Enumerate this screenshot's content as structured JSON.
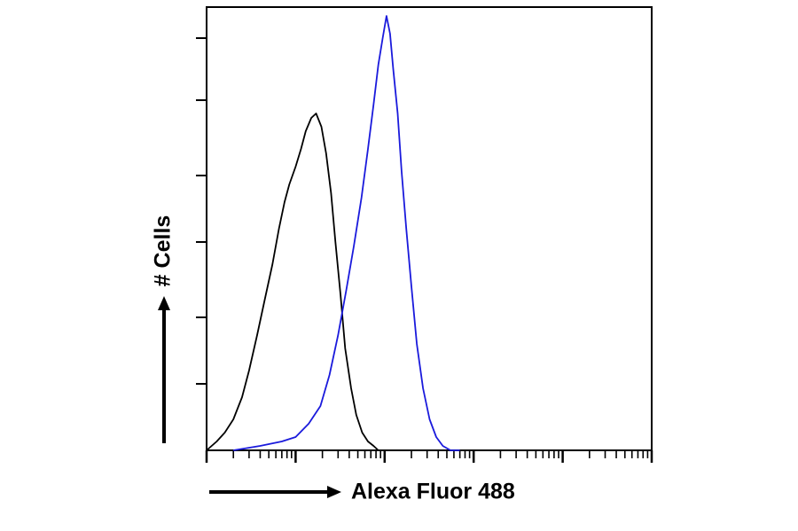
{
  "chart_data": {
    "type": "line",
    "title": "",
    "xlabel": "Alexa Fluor 488",
    "ylabel": "# Cells",
    "x_scale": "log",
    "xlim": [
      1,
      100000
    ],
    "ylim": [
      0,
      100
    ],
    "grid": false,
    "legend": "none",
    "series": [
      {
        "color": "#000000",
        "x": [
          1.0,
          1.3,
          1.6,
          2.0,
          2.5,
          3.0,
          3.7,
          4.5,
          5.5,
          6.5,
          7.5,
          8.5,
          10,
          11.5,
          13,
          15,
          17,
          19.5,
          22,
          25,
          28,
          32,
          36,
          42,
          48,
          56,
          65,
          75,
          85,
          100
        ],
        "values": [
          0,
          2,
          4,
          7,
          12,
          18,
          26,
          34,
          42,
          50,
          56,
          60,
          64,
          68,
          72,
          75,
          76,
          73,
          67,
          58,
          47,
          35,
          23,
          14,
          8,
          4,
          2,
          1,
          0,
          0
        ]
      },
      {
        "color": "#1a1adc",
        "x": [
          2,
          4,
          7,
          10,
          14,
          19,
          24,
          30,
          37,
          45,
          55,
          65,
          75,
          85,
          95,
          105,
          115,
          125,
          140,
          155,
          175,
          200,
          230,
          270,
          320,
          380,
          450,
          550,
          700
        ],
        "values": [
          0,
          1,
          2,
          3,
          6,
          10,
          17,
          26,
          36,
          46,
          57,
          68,
          78,
          87,
          93,
          98,
          94,
          86,
          76,
          63,
          50,
          37,
          24,
          14,
          7,
          3,
          1,
          0,
          0
        ]
      }
    ]
  }
}
